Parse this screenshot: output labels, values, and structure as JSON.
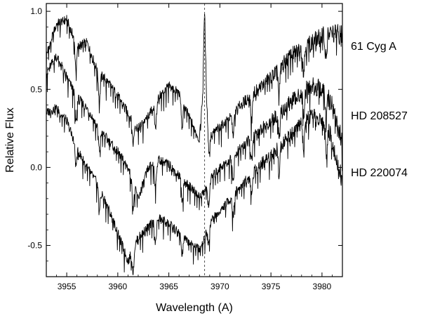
{
  "chart_data": {
    "type": "line",
    "title": "",
    "xlabel": "Wavelength (A)",
    "ylabel": "Relative Flux",
    "xlim": [
      3953,
      3982
    ],
    "ylim": [
      -0.7,
      1.05
    ],
    "xticks": [
      3955,
      3960,
      3965,
      3970,
      3975,
      3980
    ],
    "yticks": [
      -0.5,
      0.0,
      0.5,
      1.0
    ],
    "ytick_labels": [
      "-0.5",
      "0.0",
      "0.5",
      "1.0"
    ],
    "grid": false,
    "legend": "labels at right of plot",
    "reference_line": {
      "x": 3968.5,
      "style": "dashed"
    },
    "series": [
      {
        "name": "61 Cyg A",
        "x": [
          3953,
          3954,
          3955,
          3956,
          3957,
          3958,
          3959,
          3960,
          3961,
          3962,
          3963,
          3964,
          3965,
          3966,
          3967,
          3968,
          3968.3,
          3968.5,
          3968.7,
          3969,
          3970,
          3971,
          3972,
          3973,
          3974,
          3975,
          3976,
          3977,
          3978,
          3979,
          3980,
          3981,
          3982
        ],
        "y": [
          0.72,
          0.92,
          0.95,
          0.78,
          0.8,
          0.62,
          0.55,
          0.46,
          0.35,
          0.25,
          0.33,
          0.45,
          0.52,
          0.48,
          0.32,
          0.18,
          0.45,
          1.02,
          0.45,
          0.2,
          0.26,
          0.32,
          0.4,
          0.46,
          0.52,
          0.58,
          0.65,
          0.72,
          0.76,
          0.8,
          0.84,
          0.86,
          0.85
        ]
      },
      {
        "name": "HD 208527",
        "x": [
          3953,
          3954,
          3955,
          3956,
          3957,
          3958,
          3959,
          3960,
          3961,
          3962,
          3963,
          3964,
          3965,
          3966,
          3967,
          3968,
          3968.5,
          3969,
          3970,
          3971,
          3972,
          3973,
          3974,
          3975,
          3976,
          3977,
          3978,
          3979,
          3980,
          3981,
          3982
        ],
        "y": [
          0.6,
          0.72,
          0.58,
          0.45,
          0.38,
          0.26,
          0.18,
          0.1,
          0.0,
          -0.2,
          0.0,
          0.05,
          0.02,
          -0.05,
          -0.12,
          -0.18,
          -0.15,
          -0.08,
          0.0,
          0.05,
          0.12,
          0.18,
          0.24,
          0.3,
          0.36,
          0.42,
          0.48,
          0.52,
          0.5,
          0.4,
          0.15
        ]
      },
      {
        "name": "HD 220074",
        "x": [
          3953,
          3954,
          3955,
          3956,
          3957,
          3958,
          3959,
          3960,
          3961,
          3962,
          3963,
          3964,
          3965,
          3966,
          3967,
          3968,
          3968.5,
          3969,
          3970,
          3971,
          3972,
          3973,
          3974,
          3975,
          3976,
          3977,
          3978,
          3979,
          3980,
          3981,
          3982
        ],
        "y": [
          0.35,
          0.38,
          0.3,
          0.12,
          0.0,
          -0.1,
          -0.25,
          -0.42,
          -0.6,
          -0.45,
          -0.38,
          -0.32,
          -0.36,
          -0.42,
          -0.48,
          -0.52,
          -0.45,
          -0.35,
          -0.28,
          -0.2,
          -0.12,
          -0.05,
          0.02,
          0.08,
          0.15,
          0.22,
          0.28,
          0.32,
          0.3,
          0.18,
          -0.1
        ]
      }
    ],
    "colors": {
      "line": "#000000",
      "reference_line": "#555555",
      "frame": "#000000"
    }
  }
}
